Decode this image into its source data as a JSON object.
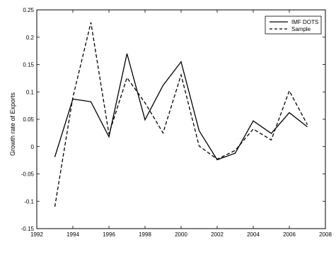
{
  "chart_data": {
    "type": "line",
    "title": "",
    "xlabel": "",
    "ylabel": "Growth rate of Exports",
    "xlim": [
      1992,
      2008
    ],
    "ylim": [
      -0.15,
      0.25
    ],
    "xticks": [
      1992,
      1994,
      1996,
      1998,
      2000,
      2002,
      2004,
      2006,
      2008
    ],
    "yticks": [
      -0.15,
      -0.1,
      -0.05,
      0,
      0.05,
      0.1,
      0.15,
      0.2,
      0.25
    ],
    "xtick_labels": [
      "1992",
      "1994",
      "1996",
      "1998",
      "2000",
      "2002",
      "2004",
      "2006",
      "2008"
    ],
    "ytick_labels": [
      "-0.15",
      "-0.1",
      "-0.05",
      "0",
      "0.05",
      "0.1",
      "0.15",
      "0.2",
      "0.25"
    ],
    "grid": false,
    "legend_position": "top-right",
    "series": [
      {
        "name": "IMF DOTS",
        "style": "solid",
        "color": "#000000",
        "x": [
          1993,
          1994,
          1995,
          1996,
          1997,
          1998,
          1999,
          2000,
          2001,
          2002,
          2003,
          2004,
          2005,
          2006,
          2007
        ],
        "y": [
          -0.019,
          0.087,
          0.082,
          0.018,
          0.17,
          0.049,
          0.112,
          0.155,
          0.029,
          -0.024,
          -0.012,
          0.047,
          0.024,
          0.062,
          0.036
        ]
      },
      {
        "name": "Sample",
        "style": "dashed",
        "color": "#000000",
        "x": [
          1993,
          1994,
          1995,
          1996,
          1997,
          1998,
          1999,
          2000,
          2001,
          2002,
          2003,
          2004,
          2005,
          2006,
          2007
        ],
        "y": [
          -0.11,
          0.09,
          0.227,
          0.023,
          0.126,
          0.08,
          0.025,
          0.131,
          0.001,
          -0.023,
          -0.007,
          0.032,
          0.012,
          0.102,
          0.04
        ]
      }
    ]
  }
}
